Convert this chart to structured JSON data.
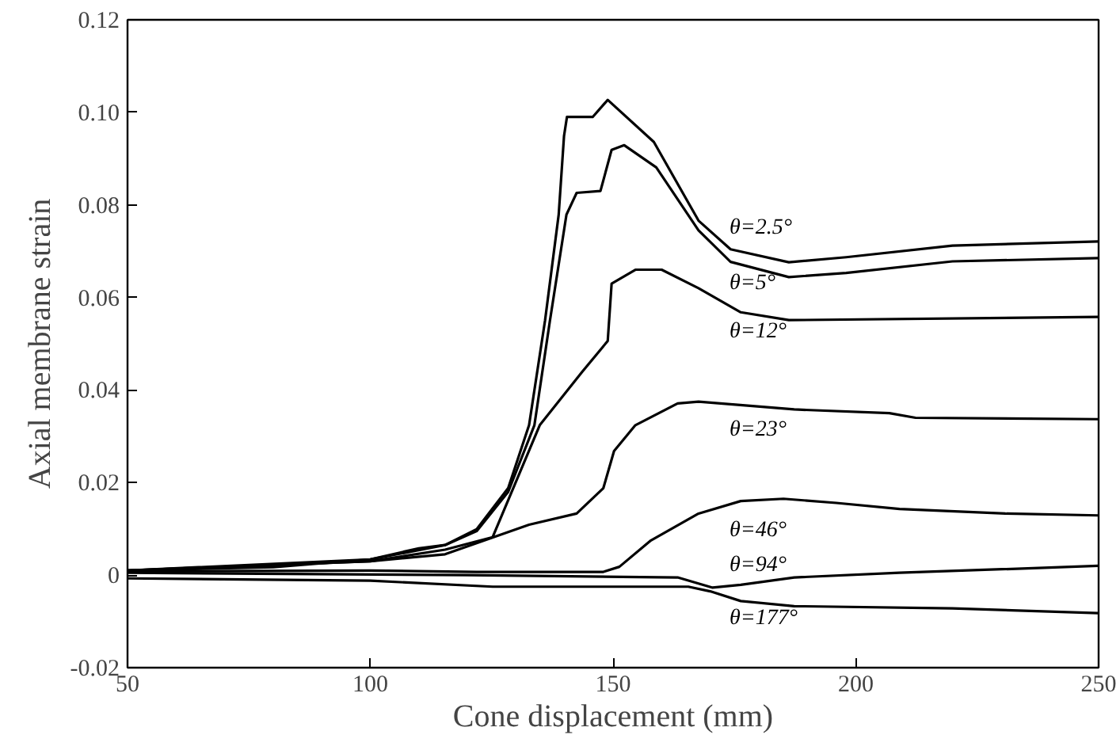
{
  "chart_data": {
    "type": "line",
    "xlabel": "Cone displacement (mm)",
    "ylabel": "Axial membrane strain",
    "xlim": [
      50,
      250
    ],
    "xticks": [
      50,
      100,
      150,
      200,
      250
    ],
    "ylim": [
      -0.02,
      0.12
    ],
    "yticks": [
      {
        "value": -0.02,
        "label": "-0.02"
      },
      0,
      {
        "value": 0.02,
        "label": "0.02"
      },
      {
        "value": 0.04,
        "label": "0.04"
      },
      {
        "value": 0.06,
        "label": "0.06"
      },
      {
        "value": 0.08,
        "label": "0.08"
      },
      {
        "value": 0.1,
        "label": "0.10"
      },
      {
        "value": 0.12,
        "label": "0.12"
      }
    ],
    "grid": false,
    "marker": "none",
    "line_style": "solid",
    "series": [
      {
        "name": "θ=2.5°",
        "color": "#000000",
        "x": [
          50,
          80,
          100,
          110,
          115.4,
          121.9,
          128.4,
          132.7,
          136,
          138.8,
          139.9,
          140.5,
          145.8,
          148.9,
          158.4,
          167.6,
          174.2,
          186.2,
          198,
          219.9,
          249.9
        ],
        "values": [
          0.001,
          0.0017,
          0.0034,
          0.0058,
          0.0065,
          0.0099,
          0.0188,
          0.0324,
          0.0551,
          0.0779,
          0.0949,
          0.099,
          0.099,
          0.1027,
          0.0936,
          0.0766,
          0.0704,
          0.0676,
          0.0687,
          0.0712,
          0.0721
        ]
      },
      {
        "name": "θ=5°",
        "color": "#000000",
        "x": [
          50,
          100,
          115.4,
          121.9,
          128.4,
          133.8,
          137,
          140.4,
          142.5,
          147.4,
          149.7,
          152.3,
          158.9,
          167.6,
          174.2,
          186.2,
          198,
          219.9,
          249.9
        ],
        "values": [
          0.001,
          0.0034,
          0.0065,
          0.0095,
          0.018,
          0.0324,
          0.055,
          0.0779,
          0.0826,
          0.083,
          0.0919,
          0.0929,
          0.0881,
          0.0745,
          0.0677,
          0.0644,
          0.0653,
          0.0678,
          0.0685
        ]
      },
      {
        "name": "θ=12°",
        "color": "#000000",
        "x": [
          50,
          100,
          115.4,
          125.2,
          134.9,
          143.6,
          148.9,
          149.7,
          154.6,
          160,
          167.6,
          176.3,
          186.2,
          249.9
        ],
        "values": [
          0.001,
          0.003,
          0.0055,
          0.0082,
          0.0324,
          0.0439,
          0.0506,
          0.063,
          0.066,
          0.066,
          0.062,
          0.0568,
          0.0551,
          0.0558
        ]
      },
      {
        "name": "θ=23°",
        "color": "#000000",
        "x": [
          50,
          100,
          115.4,
          121.9,
          132.7,
          142.5,
          148,
          150.2,
          154.6,
          163.3,
          167.6,
          187.3,
          206.9,
          212.3,
          249.9
        ],
        "values": [
          0.001,
          0.003,
          0.0045,
          0.0069,
          0.0109,
          0.0133,
          0.0188,
          0.0268,
          0.0324,
          0.0371,
          0.0375,
          0.0358,
          0.035,
          0.034,
          0.0337
        ]
      },
      {
        "name": "θ=46°",
        "color": "#000000",
        "x": [
          50,
          100,
          121.9,
          148,
          151.3,
          157.8,
          167.6,
          176.3,
          185.1,
          196,
          209,
          230.8,
          249.9
        ],
        "values": [
          0.0008,
          0.001,
          0.0007,
          0.0007,
          0.0018,
          0.0075,
          0.0133,
          0.016,
          0.0165,
          0.0156,
          0.0143,
          0.0133,
          0.0129
        ]
      },
      {
        "name": "θ=94°",
        "color": "#000000",
        "x": [
          50,
          120,
          163.3,
          170.5,
          176.3,
          187.3,
          209,
          249.9
        ],
        "values": [
          0.0005,
          0.0,
          -0.0005,
          -0.0027,
          -0.0021,
          -0.0005,
          0.0005,
          0.002
        ]
      },
      {
        "name": "θ=177°",
        "color": "#000000",
        "x": [
          50,
          100,
          125.2,
          165.5,
          170,
          176.3,
          187.3,
          219.9,
          249.9
        ],
        "values": [
          -0.0007,
          -0.0012,
          -0.0025,
          -0.0025,
          -0.0035,
          -0.0056,
          -0.0067,
          -0.0072,
          -0.0082
        ]
      }
    ]
  }
}
